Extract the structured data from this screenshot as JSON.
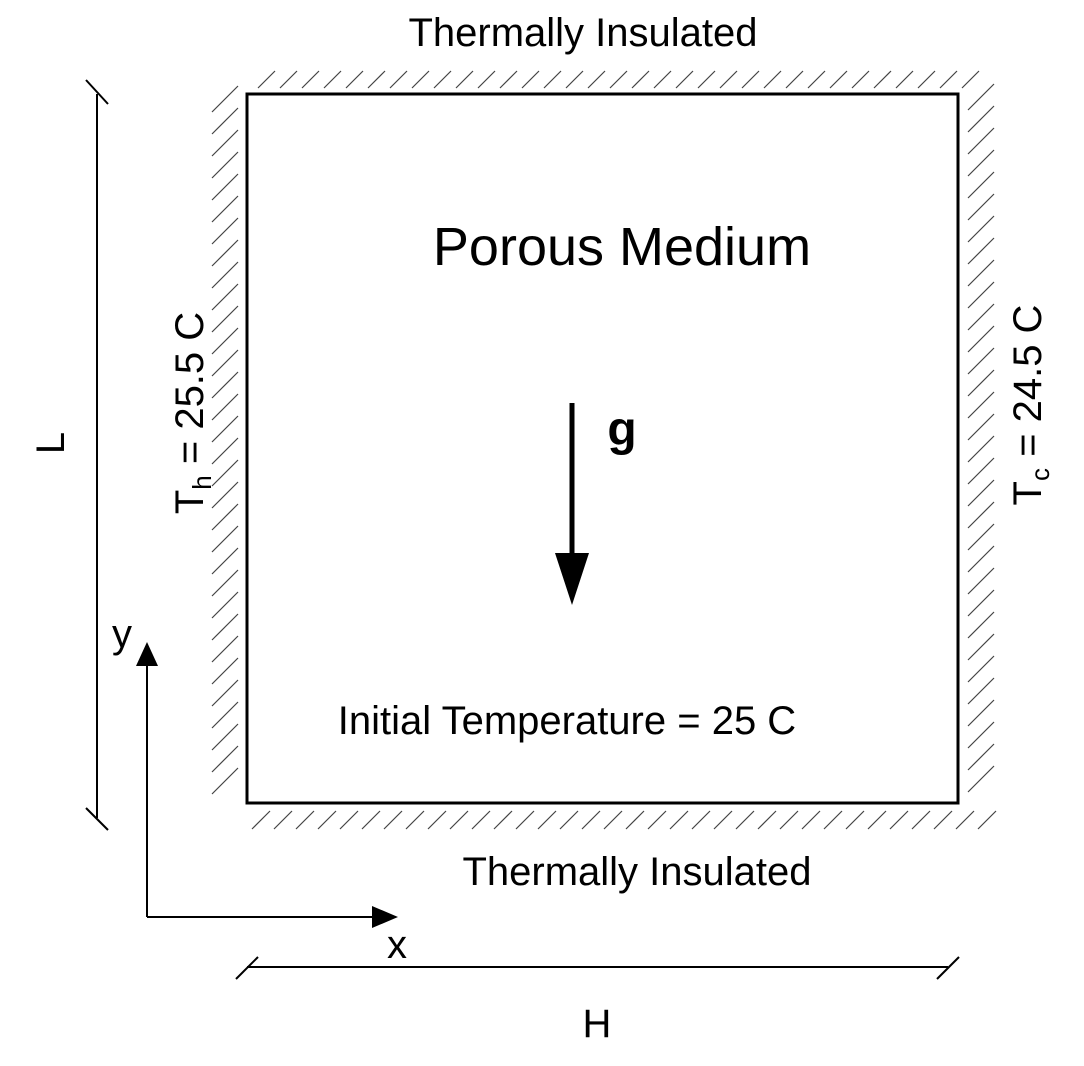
{
  "labels": {
    "top_boundary": "Thermally Insulated",
    "bottom_boundary": "Thermally Insulated",
    "medium": "Porous Medium",
    "gravity": "g",
    "initial_condition": "Initial Temperature = 25 C",
    "left_T_symbol": "T",
    "left_T_sub": "h",
    "left_T_value": " = 25.5 C",
    "right_T_symbol": "T",
    "right_T_sub": "c",
    "right_T_value": " = 24.5 C",
    "height_dim": "L",
    "width_dim": "H",
    "axis_x": "x",
    "axis_y": "y"
  }
}
